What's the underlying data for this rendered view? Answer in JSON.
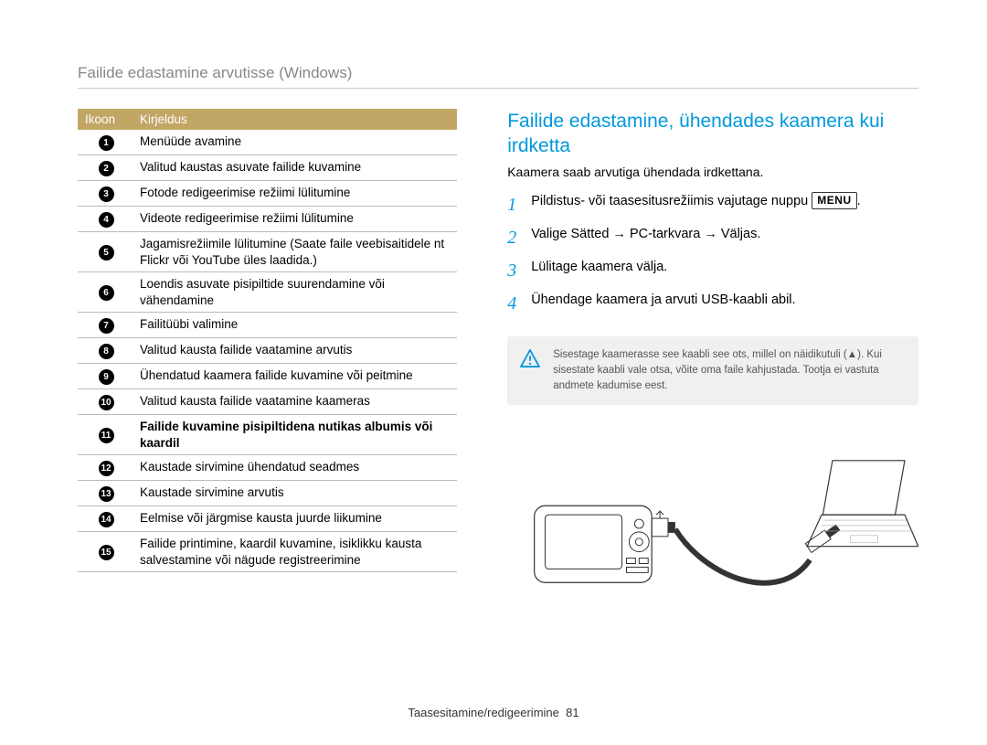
{
  "page": {
    "title": "Failide edastamine arvutisse (Windows)",
    "footer_section": "Taasesitamine/redigeerimine",
    "footer_pagenum": "81"
  },
  "table": {
    "header_icon": "Ikoon",
    "header_desc": "Kirjeldus",
    "rows": [
      {
        "n": "1",
        "desc": "Menüüde avamine",
        "bold": false
      },
      {
        "n": "2",
        "desc": "Valitud kaustas asuvate failide kuvamine",
        "bold": false
      },
      {
        "n": "3",
        "desc": "Fotode redigeerimise režiimi lülitumine",
        "bold": false
      },
      {
        "n": "4",
        "desc": "Videote redigeerimise režiimi lülitumine",
        "bold": false
      },
      {
        "n": "5",
        "desc": "Jagamisrežiimile lülitumine (Saate faile veebisaitidele nt Flickr või YouTube üles laadida.)",
        "bold": false
      },
      {
        "n": "6",
        "desc": "Loendis asuvate pisipiltide suurendamine või vähendamine",
        "bold": false
      },
      {
        "n": "7",
        "desc": "Failitüübi valimine",
        "bold": false
      },
      {
        "n": "8",
        "desc": "Valitud kausta failide vaatamine arvutis",
        "bold": false
      },
      {
        "n": "9",
        "desc": "Ühendatud kaamera failide kuvamine või peitmine",
        "bold": false
      },
      {
        "n": "10",
        "desc": "Valitud kausta failide vaatamine kaameras",
        "bold": false
      },
      {
        "n": "11",
        "desc": "Failide kuvamine pisipiltidena nutikas albumis või kaardil",
        "bold": true
      },
      {
        "n": "12",
        "desc": "Kaustade sirvimine ühendatud seadmes",
        "bold": false
      },
      {
        "n": "13",
        "desc": "Kaustade sirvimine arvutis",
        "bold": false
      },
      {
        "n": "14",
        "desc": "Eelmise või järgmise kausta juurde liikumine",
        "bold": false
      },
      {
        "n": "15",
        "desc": "Failide printimine, kaardil kuvamine, isiklikku kausta salvestamine või nägude registreerimine",
        "bold": false
      }
    ]
  },
  "right": {
    "heading": "Failide edastamine, ühendades kaamera kui irdketta",
    "intro": "Kaamera saab arvutiga ühendada irdkettana.",
    "menu_label": "MENU",
    "steps": [
      {
        "n": "1",
        "prefix": "Pildistus- või taasesitusrežiimis vajutage nuppu ",
        "has_menu": true,
        "suffix": "."
      },
      {
        "n": "2",
        "prefix": "Valige ",
        "mid": "Sätted → PC-tarkvara → Väljas",
        "suffix": "."
      },
      {
        "n": "3",
        "prefix": "Lülitage kaamera välja.",
        "suffix": ""
      },
      {
        "n": "4",
        "prefix": "Ühendage kaamera ja arvuti USB-kaabli abil.",
        "suffix": ""
      }
    ],
    "warning": "Sisestage kaamerasse see kaabli see ots, millel on näidikutuli (▲). Kui sisestate kaabli vale otsa, võite oma faile kahjustada. Tootja ei vastuta andmete kadumise eest."
  },
  "colors": {
    "accent_tan": "#c2a666",
    "accent_blue": "#0099dd",
    "text_gray": "#888888",
    "rule_gray": "#bbbbbb",
    "box_bg": "#f0f0f0"
  }
}
